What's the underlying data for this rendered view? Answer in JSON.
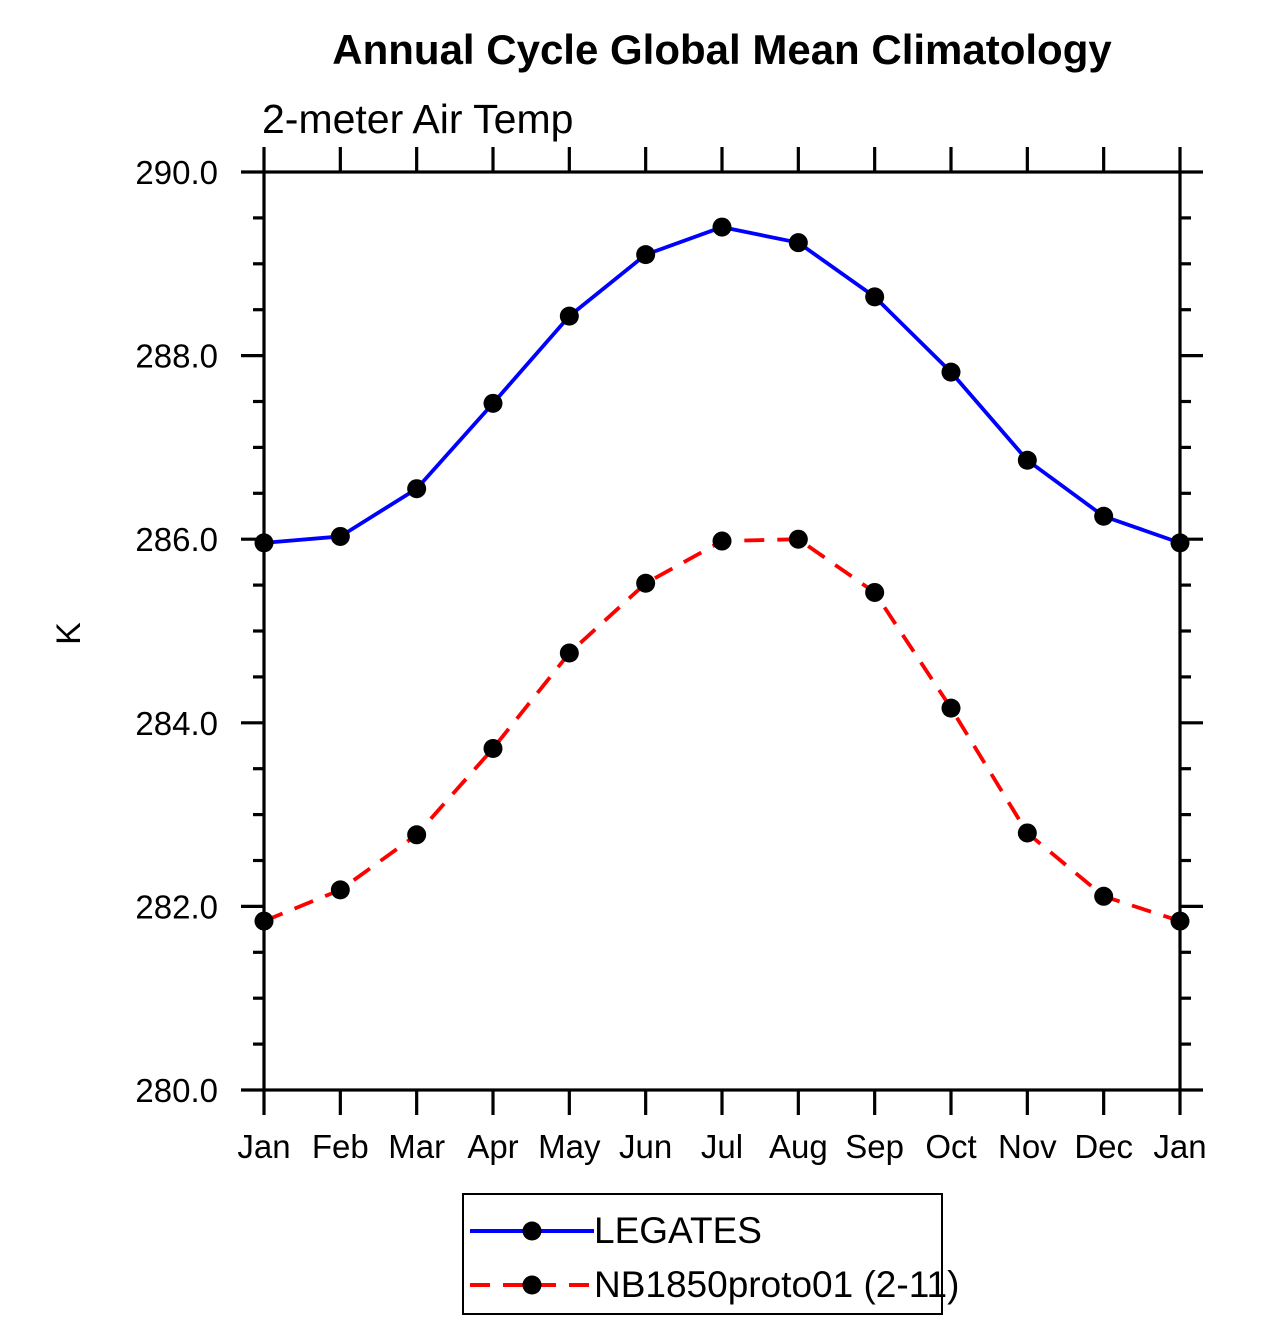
{
  "header": {
    "title": "Annual Cycle Global Mean Climatology",
    "subtitle": "2-meter Air Temp"
  },
  "axes": {
    "y_label": "K",
    "y_tick_labels": [
      "290.0",
      "288.0",
      "286.0",
      "284.0",
      "282.0",
      "280.0"
    ],
    "x_tick_labels": [
      "Jan",
      "Feb",
      "Mar",
      "Apr",
      "May",
      "Jun",
      "Jul",
      "Aug",
      "Sep",
      "Oct",
      "Nov",
      "Dec",
      "Jan"
    ]
  },
  "chart_data": {
    "type": "line",
    "title": "Annual Cycle Global Mean Climatology",
    "subtitle": "2-meter Air Temp",
    "xlabel": "",
    "ylabel": "K",
    "categories": [
      "Jan",
      "Feb",
      "Mar",
      "Apr",
      "May",
      "Jun",
      "Jul",
      "Aug",
      "Sep",
      "Oct",
      "Nov",
      "Dec",
      "Jan"
    ],
    "ylim": [
      280.0,
      290.0
    ],
    "y_major_ticks": [
      290.0,
      288.0,
      286.0,
      284.0,
      282.0,
      280.0
    ],
    "y_minor_step": 0.5,
    "grid": false,
    "legend_position": "bottom-center",
    "marker": "filled-circle",
    "marker_color": "#000000",
    "series": [
      {
        "name": "LEGATES",
        "color": "#0000ff",
        "line_style": "solid",
        "values": [
          285.96,
          286.03,
          286.55,
          287.48,
          288.43,
          289.1,
          289.4,
          289.23,
          288.64,
          287.82,
          286.86,
          286.25,
          285.96
        ]
      },
      {
        "name": "NB1850proto01 (2-11)",
        "color": "#ff0000",
        "line_style": "dashed",
        "values": [
          281.84,
          282.18,
          282.78,
          283.72,
          284.76,
          285.52,
          285.98,
          286.0,
          285.42,
          284.16,
          282.8,
          282.11,
          281.84
        ]
      }
    ]
  }
}
